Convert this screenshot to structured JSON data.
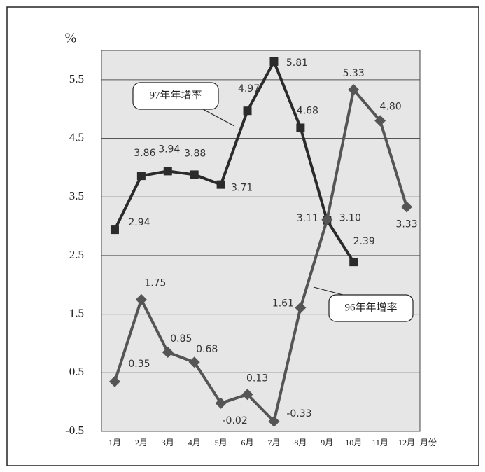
{
  "chart_data": {
    "type": "line",
    "y_label": "%",
    "x_label": "月份",
    "categories": [
      "1月",
      "2月",
      "3月",
      "4月",
      "5月",
      "6月",
      "7月",
      "8月",
      "9月",
      "10月",
      "11月",
      "12月"
    ],
    "series": [
      {
        "name": "97年年增率",
        "color": "#2b2b2b",
        "marker": "square",
        "values": [
          2.94,
          3.86,
          3.94,
          3.88,
          3.71,
          4.97,
          5.81,
          4.68,
          3.1,
          2.39,
          null,
          null
        ],
        "value_labels": [
          "2.94",
          "3.86",
          "3.94",
          "3.88",
          "3.71",
          "4.97",
          "5.81",
          "4.68",
          "3.10",
          "2.39",
          null,
          null
        ]
      },
      {
        "name": "96年年增率",
        "color": "#555555",
        "marker": "diamond",
        "values": [
          0.35,
          1.75,
          0.85,
          0.68,
          -0.02,
          0.13,
          -0.33,
          1.61,
          3.11,
          5.33,
          4.8,
          3.33
        ],
        "value_labels": [
          "0.35",
          "1.75",
          "0.85",
          "0.68",
          "-0.02",
          "0.13",
          "-0.33",
          "1.61",
          "3.11",
          "5.33",
          "4.80",
          "3.33"
        ]
      }
    ],
    "ylim": [
      -0.5,
      6.0
    ],
    "yticks": [
      -0.5,
      0.5,
      1.5,
      2.5,
      3.5,
      4.5,
      5.5
    ],
    "grid": true
  }
}
